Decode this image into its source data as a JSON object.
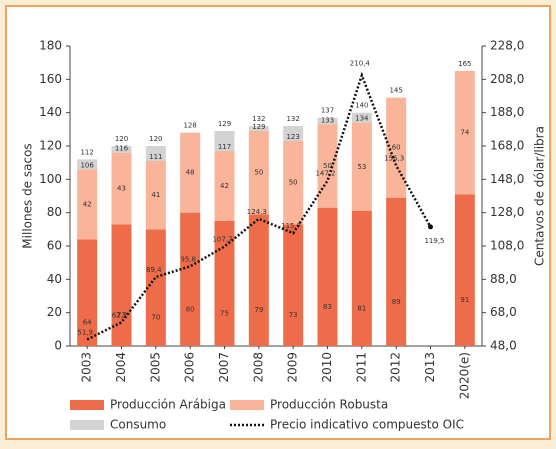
{
  "chart_data": {
    "type": "bar",
    "categories": [
      "2003",
      "2004",
      "2005",
      "2006",
      "2007",
      "2008",
      "2009",
      "2010",
      "2011",
      "2012",
      "2013",
      "2020(e)"
    ],
    "series": [
      {
        "name": "Producción Arábiga",
        "color": "#ef6c4a",
        "values": [
          64,
          73,
          70,
          80,
          75,
          79,
          73,
          83,
          81,
          89,
          null,
          91
        ]
      },
      {
        "name": "Producción Robusta",
        "color": "#f9b49a",
        "values": [
          42,
          43,
          41,
          48,
          42,
          50,
          50,
          50,
          53,
          60,
          null,
          74
        ]
      },
      {
        "name": "Consumo",
        "color": "#d3d3d3",
        "values": [
          112,
          120,
          120,
          128,
          129,
          132,
          132,
          137,
          140,
          145,
          null,
          165
        ],
        "inner_labels": [
          106,
          116,
          111,
          null,
          117,
          129,
          123,
          133,
          134,
          null,
          null,
          null
        ]
      },
      {
        "name": "Precio indicativo compuesto OIC",
        "color": "#111111",
        "axis": "y2",
        "values": [
          51.9,
          62.2,
          89.4,
          95.8,
          107.7,
          124.3,
          115.7,
          147.2,
          210.4,
          156.3,
          119.5,
          null
        ],
        "value_labels": [
          "51,9",
          "62,2",
          "89,4",
          "95,8",
          "107,7",
          "124,3",
          "115,7",
          "147,2",
          "210,4",
          "156,3",
          "119,5",
          null
        ]
      }
    ],
    "ylabel": "Millones de sacos",
    "y2label": "Centavos de dólar/libra",
    "ylim": [
      0,
      180
    ],
    "yticks": [
      0,
      20,
      40,
      60,
      80,
      100,
      120,
      140,
      160,
      180
    ],
    "y2lim": [
      48,
      228
    ],
    "y2ticks": [
      {
        "value": 48,
        "label": "48,0"
      },
      {
        "value": 68,
        "label": "68,0"
      },
      {
        "value": 88,
        "label": "88,0"
      },
      {
        "value": 108,
        "label": "108,0"
      },
      {
        "value": 128,
        "label": "128,0"
      },
      {
        "value": 148,
        "label": "148,0"
      },
      {
        "value": 168,
        "label": "168,0"
      },
      {
        "value": 188,
        "label": "188,0"
      },
      {
        "value": 208,
        "label": "208,0"
      },
      {
        "value": 228,
        "label": "228,0"
      }
    ],
    "legend": "bottom"
  }
}
